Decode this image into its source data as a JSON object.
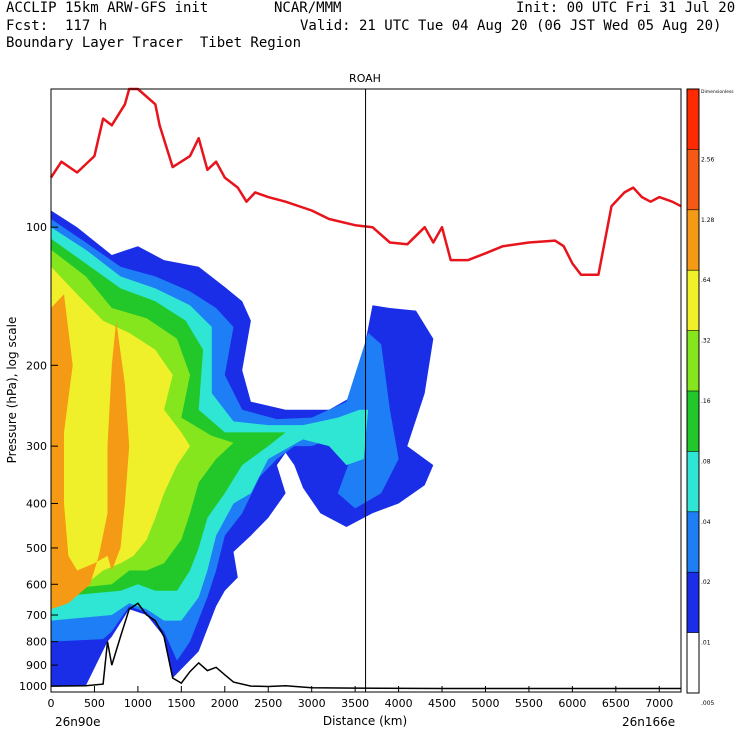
{
  "header": {
    "line1_left": "ACCLIP 15km ARW-GFS init",
    "line1_mid": "NCAR/MMM",
    "line1_right": "Init: 00 UTC Fri 31 Jul 20",
    "line2_left": "Fcst:  117 h",
    "line2_right": "Valid: 21 UTC Tue 04 Aug 20 (06 JST Wed 05 Aug 20)",
    "line3_left": "Boundary Layer Tracer  Tibet Region"
  },
  "colors": {
    "tropopause": "#e8141c",
    "terrain": "#000000",
    "levels": [
      "#ffffff",
      "#1a2ee8",
      "#1e7ef5",
      "#2fe6d4",
      "#22c82a",
      "#86e61e",
      "#f0f02a",
      "#f59a14",
      "#f55a14",
      "#ff2a00"
    ]
  },
  "chart_data": {
    "type": "cross-section",
    "title": "ROAH",
    "xlabel": "Distance (km)",
    "ylabel": "Pressure (hPa), log scale",
    "x_start_label": "26n90e",
    "x_end_label": "26n166e",
    "xlim": [
      0,
      7250
    ],
    "ylim_hpa": [
      1030,
      50
    ],
    "x_ticks": [
      0,
      500,
      1000,
      1500,
      2000,
      2500,
      3000,
      3500,
      4000,
      4500,
      5000,
      5500,
      6000,
      6500,
      7000
    ],
    "y_ticks": [
      100,
      200,
      300,
      400,
      500,
      600,
      700,
      800,
      900,
      1000
    ],
    "vertical_line_km": 3620,
    "colorbar": {
      "levels": [
        "Dimensionless",
        "2.56",
        "1.28",
        ".64",
        ".32",
        ".16",
        ".08",
        ".04",
        ".02",
        ".01",
        ".005"
      ]
    },
    "tropopause_hpa": [
      [
        0,
        78
      ],
      [
        120,
        72
      ],
      [
        300,
        76
      ],
      [
        500,
        70
      ],
      [
        600,
        58
      ],
      [
        700,
        60
      ],
      [
        850,
        54
      ],
      [
        900,
        50
      ],
      [
        1000,
        50
      ],
      [
        1200,
        54
      ],
      [
        1250,
        60
      ],
      [
        1400,
        74
      ],
      [
        1600,
        70
      ],
      [
        1700,
        64
      ],
      [
        1800,
        75
      ],
      [
        1900,
        72
      ],
      [
        2000,
        78
      ],
      [
        2150,
        82
      ],
      [
        2250,
        88
      ],
      [
        2350,
        84
      ],
      [
        2500,
        86
      ],
      [
        2700,
        88
      ],
      [
        3000,
        92
      ],
      [
        3200,
        96
      ],
      [
        3500,
        99
      ],
      [
        3700,
        100
      ],
      [
        3900,
        108
      ],
      [
        4100,
        109
      ],
      [
        4300,
        100
      ],
      [
        4400,
        108
      ],
      [
        4500,
        100
      ],
      [
        4600,
        118
      ],
      [
        4800,
        118
      ],
      [
        5000,
        114
      ],
      [
        5200,
        110
      ],
      [
        5500,
        108
      ],
      [
        5800,
        107
      ],
      [
        5900,
        110
      ],
      [
        6000,
        120
      ],
      [
        6100,
        127
      ],
      [
        6300,
        127
      ],
      [
        6450,
        90
      ],
      [
        6600,
        84
      ],
      [
        6700,
        82
      ],
      [
        6800,
        86
      ],
      [
        6900,
        88
      ],
      [
        7000,
        86
      ],
      [
        7150,
        88
      ],
      [
        7250,
        90
      ]
    ],
    "terrain_hpa": [
      [
        0,
        1000
      ],
      [
        400,
        998
      ],
      [
        600,
        990
      ],
      [
        650,
        800
      ],
      [
        700,
        900
      ],
      [
        800,
        780
      ],
      [
        900,
        680
      ],
      [
        1000,
        660
      ],
      [
        1100,
        700
      ],
      [
        1200,
        720
      ],
      [
        1300,
        780
      ],
      [
        1400,
        960
      ],
      [
        1500,
        985
      ],
      [
        1600,
        930
      ],
      [
        1700,
        890
      ],
      [
        1800,
        925
      ],
      [
        1900,
        910
      ],
      [
        2000,
        945
      ],
      [
        2100,
        980
      ],
      [
        2300,
        1000
      ],
      [
        2500,
        1002
      ],
      [
        2700,
        998
      ],
      [
        3000,
        1008
      ],
      [
        3500,
        1010
      ],
      [
        4500,
        1012
      ],
      [
        5500,
        1012
      ],
      [
        7250,
        1012
      ]
    ],
    "tracer_regions": [
      {
        "level": ".01",
        "polygon": [
          [
            0,
            92
          ],
          [
            300,
            100
          ],
          [
            700,
            115
          ],
          [
            1000,
            110
          ],
          [
            1300,
            118
          ],
          [
            1700,
            122
          ],
          [
            2000,
            135
          ],
          [
            2200,
            145
          ],
          [
            2300,
            160
          ],
          [
            2200,
            205
          ],
          [
            2300,
            240
          ],
          [
            2700,
            250
          ],
          [
            3200,
            250
          ],
          [
            3500,
            232
          ],
          [
            3700,
            148
          ],
          [
            3900,
            150
          ],
          [
            4200,
            152
          ],
          [
            4400,
            175
          ],
          [
            4300,
            230
          ],
          [
            4100,
            300
          ],
          [
            4400,
            330
          ],
          [
            4300,
            365
          ],
          [
            4000,
            400
          ],
          [
            3700,
            420
          ],
          [
            3400,
            450
          ],
          [
            3100,
            420
          ],
          [
            2900,
            370
          ],
          [
            2800,
            330
          ],
          [
            2700,
            310
          ],
          [
            2600,
            330
          ],
          [
            2700,
            380
          ],
          [
            2500,
            430
          ],
          [
            2300,
            470
          ],
          [
            2100,
            510
          ],
          [
            2150,
            580
          ],
          [
            2000,
            620
          ],
          [
            1900,
            670
          ],
          [
            1700,
            840
          ],
          [
            1400,
            960
          ],
          [
            1300,
            780
          ],
          [
            1100,
            700
          ],
          [
            900,
            680
          ],
          [
            700,
            780
          ],
          [
            650,
            800
          ],
          [
            400,
            998
          ],
          [
            0,
            1000
          ]
        ]
      },
      {
        "level": ".02",
        "polygon": [
          [
            0,
            96
          ],
          [
            400,
            108
          ],
          [
            800,
            122
          ],
          [
            1200,
            128
          ],
          [
            1600,
            138
          ],
          [
            1900,
            150
          ],
          [
            2100,
            165
          ],
          [
            2000,
            210
          ],
          [
            2200,
            250
          ],
          [
            2600,
            262
          ],
          [
            3000,
            260
          ],
          [
            3400,
            240
          ],
          [
            3650,
            170
          ],
          [
            3800,
            180
          ],
          [
            3900,
            250
          ],
          [
            4000,
            320
          ],
          [
            3800,
            380
          ],
          [
            3500,
            410
          ],
          [
            3300,
            380
          ],
          [
            3500,
            300
          ],
          [
            3300,
            285
          ],
          [
            3000,
            300
          ],
          [
            2800,
            300
          ],
          [
            2600,
            320
          ],
          [
            2400,
            350
          ],
          [
            2200,
            420
          ],
          [
            2000,
            470
          ],
          [
            1900,
            560
          ],
          [
            1800,
            640
          ],
          [
            1600,
            800
          ],
          [
            1450,
            880
          ],
          [
            1300,
            760
          ],
          [
            1100,
            690
          ],
          [
            900,
            670
          ],
          [
            700,
            760
          ],
          [
            600,
            790
          ],
          [
            0,
            800
          ]
        ]
      },
      {
        "level": ".04",
        "polygon": [
          [
            0,
            100
          ],
          [
            400,
            112
          ],
          [
            800,
            128
          ],
          [
            1200,
            136
          ],
          [
            1600,
            148
          ],
          [
            1850,
            165
          ],
          [
            1850,
            230
          ],
          [
            2100,
            265
          ],
          [
            2500,
            270
          ],
          [
            2900,
            270
          ],
          [
            3300,
            260
          ],
          [
            3550,
            250
          ],
          [
            3650,
            250
          ],
          [
            3600,
            320
          ],
          [
            3400,
            330
          ],
          [
            3200,
            300
          ],
          [
            2900,
            290
          ],
          [
            2500,
            320
          ],
          [
            2300,
            380
          ],
          [
            2100,
            400
          ],
          [
            1900,
            470
          ],
          [
            1800,
            560
          ],
          [
            1700,
            640
          ],
          [
            1500,
            720
          ],
          [
            1300,
            720
          ],
          [
            1100,
            680
          ],
          [
            900,
            660
          ],
          [
            700,
            700
          ],
          [
            0,
            720
          ]
        ]
      },
      {
        "level": ".08",
        "polygon": [
          [
            0,
            106
          ],
          [
            400,
            120
          ],
          [
            800,
            136
          ],
          [
            1200,
            145
          ],
          [
            1550,
            160
          ],
          [
            1750,
            185
          ],
          [
            1700,
            250
          ],
          [
            2000,
            280
          ],
          [
            2400,
            280
          ],
          [
            2700,
            280
          ],
          [
            2500,
            300
          ],
          [
            2200,
            330
          ],
          [
            2000,
            380
          ],
          [
            1800,
            430
          ],
          [
            1700,
            500
          ],
          [
            1600,
            560
          ],
          [
            1450,
            620
          ],
          [
            1200,
            620
          ],
          [
            1000,
            600
          ],
          [
            800,
            620
          ],
          [
            0,
            640
          ]
        ]
      },
      {
        "level": ".16",
        "polygon": [
          [
            0,
            112
          ],
          [
            400,
            128
          ],
          [
            700,
            150
          ],
          [
            1100,
            158
          ],
          [
            1450,
            175
          ],
          [
            1600,
            210
          ],
          [
            1500,
            260
          ],
          [
            1850,
            285
          ],
          [
            2100,
            295
          ],
          [
            1900,
            320
          ],
          [
            1700,
            360
          ],
          [
            1600,
            420
          ],
          [
            1500,
            480
          ],
          [
            1300,
            540
          ],
          [
            1100,
            560
          ],
          [
            900,
            560
          ],
          [
            700,
            600
          ],
          [
            0,
            620
          ]
        ]
      },
      {
        "level": ".32",
        "polygon": [
          [
            0,
            122
          ],
          [
            300,
            140
          ],
          [
            600,
            160
          ],
          [
            900,
            170
          ],
          [
            1200,
            185
          ],
          [
            1400,
            210
          ],
          [
            1300,
            250
          ],
          [
            1500,
            280
          ],
          [
            1600,
            300
          ],
          [
            1450,
            330
          ],
          [
            1300,
            380
          ],
          [
            1200,
            430
          ],
          [
            1100,
            480
          ],
          [
            950,
            520
          ],
          [
            800,
            540
          ],
          [
            600,
            560
          ],
          [
            400,
            600
          ],
          [
            0,
            610
          ]
        ]
      },
      {
        "level": ".64",
        "polygon": [
          [
            0,
            150
          ],
          [
            150,
            140
          ],
          [
            250,
            200
          ],
          [
            150,
            280
          ],
          [
            150,
            400
          ],
          [
            200,
            520
          ],
          [
            300,
            560
          ],
          [
            500,
            540
          ],
          [
            650,
            520
          ],
          [
            700,
            560
          ],
          [
            800,
            500
          ],
          [
            850,
            400
          ],
          [
            900,
            300
          ],
          [
            850,
            220
          ],
          [
            750,
            160
          ],
          [
            700,
            200
          ],
          [
            650,
            300
          ],
          [
            650,
            420
          ],
          [
            550,
            520
          ],
          [
            450,
            600
          ],
          [
            200,
            660
          ],
          [
            0,
            680
          ]
        ]
      }
    ]
  }
}
